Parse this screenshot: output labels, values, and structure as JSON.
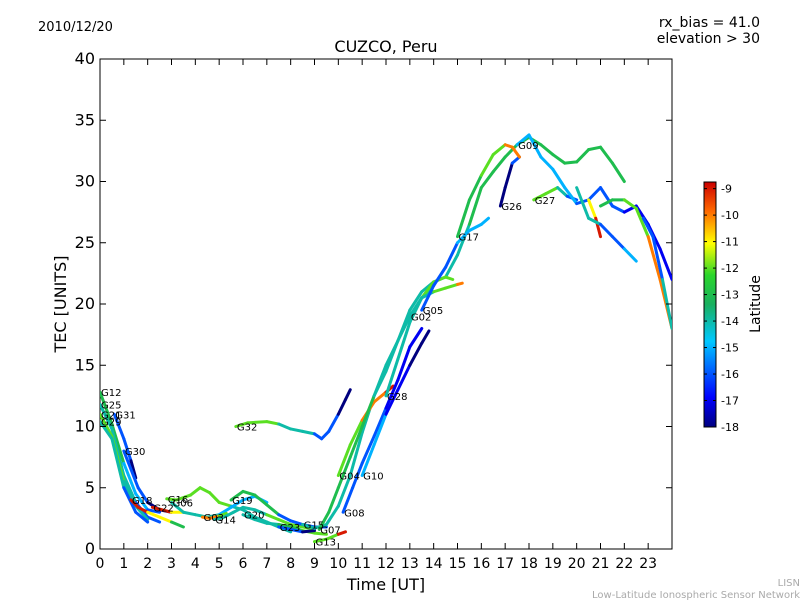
{
  "header": {
    "date": "2010/12/20",
    "rx_bias": "rx_bias = 41.0",
    "elevation": "elevation > 30"
  },
  "footer": {
    "line1": "LISN",
    "line2": "Low-Latitude Ionospheric Sensor Network"
  },
  "colorbar": {
    "label": "Latitude",
    "ticks": [
      "-9",
      "-10",
      "-11",
      "-12",
      "-13",
      "-14",
      "-15",
      "-16",
      "-17",
      "-18"
    ],
    "min": -18,
    "max": -8.75
  },
  "chart_data": {
    "type": "scatter",
    "title": "CUZCO, Peru",
    "xlabel": "Time [UT]",
    "ylabel": "TEC [UNITS]",
    "xlim": [
      0,
      24
    ],
    "ylim": [
      0,
      40
    ],
    "xticks": [
      "0",
      "1",
      "2",
      "3",
      "4",
      "5",
      "6",
      "7",
      "8",
      "9",
      "10",
      "11",
      "12",
      "13",
      "14",
      "15",
      "16",
      "17",
      "18",
      "19",
      "20",
      "21",
      "22",
      "23"
    ],
    "yticks": [
      "0",
      "5",
      "10",
      "15",
      "20",
      "25",
      "30",
      "35",
      "40"
    ],
    "grid": false,
    "series": [
      {
        "name": "G12",
        "lat": [
          -13,
          -15,
          -16
        ],
        "points": [
          [
            0.0,
            12.8
          ],
          [
            0.5,
            10.2
          ],
          [
            1.0,
            7.0
          ],
          [
            1.5,
            4.5
          ],
          [
            2.0,
            3.2
          ],
          [
            2.5,
            3.0
          ]
        ]
      },
      {
        "name": "G25",
        "lat": [
          -14,
          -16
        ],
        "points": [
          [
            0.0,
            11.8
          ],
          [
            0.5,
            9.8
          ],
          [
            1.0,
            6.0
          ],
          [
            1.5,
            3.8
          ],
          [
            2.0,
            2.6
          ],
          [
            2.5,
            2.2
          ]
        ]
      },
      {
        "name": "G21",
        "lat": [
          -12,
          -14
        ],
        "points": [
          [
            0.0,
            11.0
          ],
          [
            0.5,
            9.2
          ],
          [
            1.0,
            5.5
          ],
          [
            1.5,
            3.5
          ],
          [
            2.0,
            2.4
          ]
        ]
      },
      {
        "name": "G31",
        "lat": [
          -16,
          -18
        ],
        "points": [
          [
            0.6,
            11.0
          ],
          [
            1.0,
            9.0
          ],
          [
            1.3,
            7.2
          ],
          [
            1.5,
            5.8
          ]
        ]
      },
      {
        "name": "G29",
        "lat": [
          -14,
          -16
        ],
        "points": [
          [
            0.0,
            10.4
          ],
          [
            0.5,
            9.0
          ],
          [
            1.0,
            5.0
          ],
          [
            1.5,
            3.0
          ],
          [
            2.0,
            2.2
          ]
        ]
      },
      {
        "name": "G30",
        "lat": [
          -16,
          -18
        ],
        "points": [
          [
            1.0,
            8.0
          ],
          [
            1.3,
            6.5
          ],
          [
            1.6,
            5.0
          ],
          [
            2.0,
            3.8
          ],
          [
            2.5,
            3.2
          ],
          [
            3.0,
            3.0
          ]
        ]
      },
      {
        "name": "G18",
        "lat": [
          -9,
          -11,
          -13
        ],
        "points": [
          [
            1.3,
            4.0
          ],
          [
            1.6,
            3.4
          ],
          [
            2.0,
            3.0
          ],
          [
            2.5,
            2.6
          ],
          [
            3.0,
            2.2
          ],
          [
            3.5,
            1.8
          ]
        ]
      },
      {
        "name": "G16",
        "lat": [
          -12,
          -14
        ],
        "points": [
          [
            2.8,
            4.1
          ],
          [
            3.2,
            4.0
          ],
          [
            3.8,
            4.4
          ],
          [
            4.2,
            5.0
          ],
          [
            4.6,
            4.6
          ],
          [
            5.0,
            3.8
          ],
          [
            5.5,
            3.5
          ],
          [
            6.0,
            3.2
          ],
          [
            6.5,
            2.6
          ],
          [
            7.0,
            2.2
          ],
          [
            7.5,
            1.8
          ],
          [
            8.0,
            1.4
          ]
        ]
      },
      {
        "name": "G22",
        "lat": [
          -9,
          -11
        ],
        "points": [
          [
            2.2,
            3.4
          ],
          [
            2.6,
            3.2
          ],
          [
            3.0,
            3.0
          ],
          [
            3.5,
            3.0
          ]
        ]
      },
      {
        "name": "G06",
        "lat": [
          -14,
          -15
        ],
        "points": [
          [
            3.0,
            3.8
          ],
          [
            3.5,
            3.0
          ],
          [
            4.0,
            2.8
          ],
          [
            4.5,
            2.6
          ],
          [
            5.0,
            2.8
          ],
          [
            5.5,
            3.4
          ],
          [
            6.0,
            4.0
          ],
          [
            6.5,
            4.3
          ],
          [
            7.0,
            3.8
          ]
        ]
      },
      {
        "name": "G03",
        "lat": [
          -10,
          -12
        ],
        "points": [
          [
            4.3,
            2.6
          ],
          [
            4.6,
            2.5
          ],
          [
            5.0,
            2.7
          ],
          [
            5.3,
            2.9
          ]
        ]
      },
      {
        "name": "G14",
        "lat": [
          -14,
          -12
        ],
        "points": [
          [
            4.8,
            2.4
          ],
          [
            5.2,
            2.6
          ],
          [
            5.6,
            3.0
          ],
          [
            6.0,
            3.4
          ],
          [
            6.5,
            3.2
          ],
          [
            7.0,
            2.8
          ],
          [
            7.5,
            2.4
          ],
          [
            8.0,
            2.0
          ],
          [
            8.5,
            1.8
          ],
          [
            9.0,
            1.6
          ]
        ]
      },
      {
        "name": "G19",
        "lat": [
          -13,
          -16
        ],
        "points": [
          [
            5.5,
            4.0
          ],
          [
            6.0,
            4.7
          ],
          [
            6.5,
            4.4
          ],
          [
            7.0,
            3.6
          ],
          [
            7.5,
            2.8
          ],
          [
            8.0,
            2.3
          ],
          [
            8.5,
            2.0
          ],
          [
            9.0,
            1.8
          ],
          [
            9.5,
            1.8
          ]
        ]
      },
      {
        "name": "G32",
        "lat": [
          -12,
          -14,
          -16,
          -18
        ],
        "points": [
          [
            5.7,
            10.0
          ],
          [
            6.2,
            10.3
          ],
          [
            7.0,
            10.4
          ],
          [
            7.5,
            10.2
          ],
          [
            8.0,
            9.8
          ],
          [
            8.5,
            9.6
          ],
          [
            9.0,
            9.4
          ],
          [
            9.3,
            9.0
          ],
          [
            9.6,
            9.6
          ],
          [
            10.0,
            11.0
          ],
          [
            10.3,
            12.2
          ],
          [
            10.5,
            13.0
          ]
        ]
      },
      {
        "name": "G20",
        "lat": [
          -14,
          -13,
          -12
        ],
        "points": [
          [
            6.0,
            2.8
          ],
          [
            6.5,
            2.4
          ],
          [
            7.0,
            2.1
          ],
          [
            7.5,
            2.0
          ],
          [
            8.0,
            1.8
          ],
          [
            8.5,
            1.5
          ],
          [
            9.0,
            1.3
          ],
          [
            9.5,
            1.2
          ]
        ]
      },
      {
        "name": "G23",
        "lat": [
          -16,
          -18
        ],
        "points": [
          [
            7.5,
            1.8
          ],
          [
            8.0,
            1.6
          ],
          [
            8.5,
            1.4
          ],
          [
            9.0,
            1.5
          ]
        ]
      },
      {
        "name": "G15",
        "lat": [
          -14,
          -13
        ],
        "points": [
          [
            8.5,
            2.0
          ],
          [
            9.0,
            1.7
          ],
          [
            9.5,
            2.0
          ],
          [
            10.0,
            3.5
          ],
          [
            10.5,
            6.0
          ],
          [
            11.0,
            9.5
          ],
          [
            11.5,
            12.5
          ],
          [
            12.0,
            14.5
          ],
          [
            12.5,
            17.0
          ],
          [
            13.0,
            19.5
          ],
          [
            13.5,
            21.0
          ],
          [
            14.0,
            21.8
          ],
          [
            14.5,
            22.2
          ],
          [
            15.0,
            24.0
          ],
          [
            15.5,
            26.5
          ],
          [
            16.0,
            29.5
          ],
          [
            16.5,
            30.8
          ],
          [
            17.0,
            32.0
          ],
          [
            17.5,
            33.0
          ],
          [
            18.0,
            33.6
          ],
          [
            18.5,
            33.0
          ],
          [
            19.0,
            32.2
          ],
          [
            19.5,
            31.5
          ],
          [
            20.0,
            31.6
          ],
          [
            20.5,
            32.6
          ],
          [
            21.0,
            32.8
          ],
          [
            21.5,
            31.5
          ],
          [
            22.0,
            30.0
          ]
        ]
      },
      {
        "name": "G13",
        "lat": [
          -12,
          -9
        ],
        "points": [
          [
            9.0,
            0.6
          ],
          [
            9.5,
            0.8
          ],
          [
            10.0,
            1.2
          ],
          [
            10.3,
            1.4
          ]
        ]
      },
      {
        "name": "G04",
        "lat": [
          -12,
          -10,
          -9
        ],
        "points": [
          [
            10.0,
            6.0
          ],
          [
            10.5,
            8.5
          ],
          [
            11.0,
            10.5
          ],
          [
            11.5,
            12.0
          ],
          [
            12.0,
            12.8
          ],
          [
            12.3,
            13.3
          ]
        ]
      },
      {
        "name": "G08",
        "lat": [
          -16,
          -17
        ],
        "points": [
          [
            10.2,
            3.0
          ],
          [
            10.6,
            5.0
          ],
          [
            11.0,
            7.0
          ],
          [
            11.5,
            9.2
          ],
          [
            12.0,
            11.5
          ],
          [
            12.5,
            13.8
          ],
          [
            13.0,
            16.5
          ],
          [
            13.5,
            18.0
          ]
        ]
      },
      {
        "name": "G07",
        "lat": [
          -13,
          -14
        ],
        "points": [
          [
            9.2,
            1.6
          ],
          [
            9.6,
            3.0
          ],
          [
            10.0,
            5.0
          ],
          [
            10.5,
            7.5
          ],
          [
            11.0,
            10.0
          ],
          [
            11.5,
            12.5
          ],
          [
            12.0,
            15.0
          ],
          [
            12.5,
            17.0
          ],
          [
            13.0,
            19.0
          ],
          [
            13.5,
            20.5
          ],
          [
            14.0,
            21.5
          ]
        ]
      },
      {
        "name": "G10",
        "lat": [
          -15,
          -17,
          -18
        ],
        "points": [
          [
            11.0,
            6.0
          ],
          [
            11.5,
            8.5
          ],
          [
            12.0,
            11.0
          ],
          [
            12.5,
            13.0
          ],
          [
            13.0,
            15.0
          ],
          [
            13.5,
            16.8
          ],
          [
            13.8,
            17.8
          ]
        ]
      },
      {
        "name": "G28",
        "lat": [
          -14,
          -12
        ],
        "points": [
          [
            12.0,
            12.5
          ],
          [
            12.5,
            15.5
          ],
          [
            13.0,
            18.5
          ],
          [
            13.5,
            20.5
          ],
          [
            14.0,
            21.8
          ],
          [
            14.5,
            22.2
          ],
          [
            14.8,
            22.0
          ]
        ]
      },
      {
        "name": "G02",
        "lat": [
          -14,
          -12,
          -10
        ],
        "points": [
          [
            13.0,
            19.0
          ],
          [
            13.5,
            20.5
          ],
          [
            14.0,
            21.0
          ],
          [
            14.5,
            21.3
          ],
          [
            15.0,
            21.6
          ],
          [
            15.2,
            21.7
          ]
        ]
      },
      {
        "name": "G05",
        "lat": [
          -16,
          -15
        ],
        "points": [
          [
            13.5,
            19.5
          ],
          [
            14.0,
            21.5
          ],
          [
            14.5,
            23.0
          ],
          [
            15.0,
            25.0
          ],
          [
            15.5,
            26.0
          ],
          [
            16.0,
            26.5
          ],
          [
            16.3,
            27.0
          ]
        ]
      },
      {
        "name": "G26",
        "lat": [
          -18,
          -16
        ],
        "points": [
          [
            16.8,
            28.0
          ],
          [
            17.0,
            29.5
          ],
          [
            17.3,
            31.5
          ],
          [
            17.6,
            32.0
          ]
        ]
      },
      {
        "name": "G17",
        "lat": [
          -13,
          -12,
          -10
        ],
        "points": [
          [
            15.0,
            25.5
          ],
          [
            15.5,
            28.5
          ],
          [
            16.0,
            30.5
          ],
          [
            16.5,
            32.2
          ],
          [
            17.0,
            33.0
          ],
          [
            17.3,
            32.8
          ],
          [
            17.6,
            32.0
          ]
        ]
      },
      {
        "name": "G27",
        "lat": [
          -12,
          -14,
          -16
        ],
        "points": [
          [
            18.2,
            28.5
          ],
          [
            18.7,
            29.0
          ],
          [
            19.2,
            29.5
          ],
          [
            19.6,
            28.8
          ],
          [
            20.0,
            28.5
          ]
        ]
      },
      {
        "name": "G09",
        "lat": [
          -15,
          -16,
          -17
        ],
        "points": [
          [
            17.5,
            33.0
          ],
          [
            18.0,
            33.8
          ],
          [
            18.5,
            32.0
          ],
          [
            19.0,
            31.0
          ],
          [
            19.5,
            29.5
          ],
          [
            20.0,
            28.2
          ],
          [
            20.5,
            28.5
          ],
          [
            21.0,
            29.5
          ],
          [
            21.5,
            28.0
          ],
          [
            22.0,
            27.5
          ],
          [
            22.5,
            28.0
          ],
          [
            23.0,
            26.5
          ],
          [
            23.5,
            24.5
          ],
          [
            24.0,
            22.0
          ]
        ]
      },
      {
        "name": "",
        "lat": [
          -13,
          -12,
          -10
        ],
        "points": [
          [
            21.0,
            28.0
          ],
          [
            21.5,
            28.5
          ],
          [
            22.0,
            28.5
          ],
          [
            22.5,
            27.8
          ],
          [
            23.0,
            25.5
          ],
          [
            23.5,
            22.0
          ],
          [
            24.0,
            18.0
          ]
        ]
      },
      {
        "name": "",
        "lat": [
          -11,
          -9
        ],
        "points": [
          [
            20.5,
            28.5
          ],
          [
            20.8,
            27.0
          ],
          [
            21.0,
            25.5
          ]
        ]
      },
      {
        "name": "",
        "lat": [
          -14,
          -16,
          -15
        ],
        "points": [
          [
            20.0,
            29.5
          ],
          [
            20.5,
            27.0
          ],
          [
            21.0,
            26.5
          ],
          [
            21.5,
            25.5
          ],
          [
            22.0,
            24.5
          ],
          [
            22.5,
            23.5
          ]
        ]
      },
      {
        "name": "",
        "lat": [
          -16,
          -14
        ],
        "points": [
          [
            22.8,
            27.0
          ],
          [
            23.2,
            25.5
          ],
          [
            23.6,
            22.0
          ],
          [
            24.0,
            18.0
          ]
        ]
      }
    ]
  }
}
